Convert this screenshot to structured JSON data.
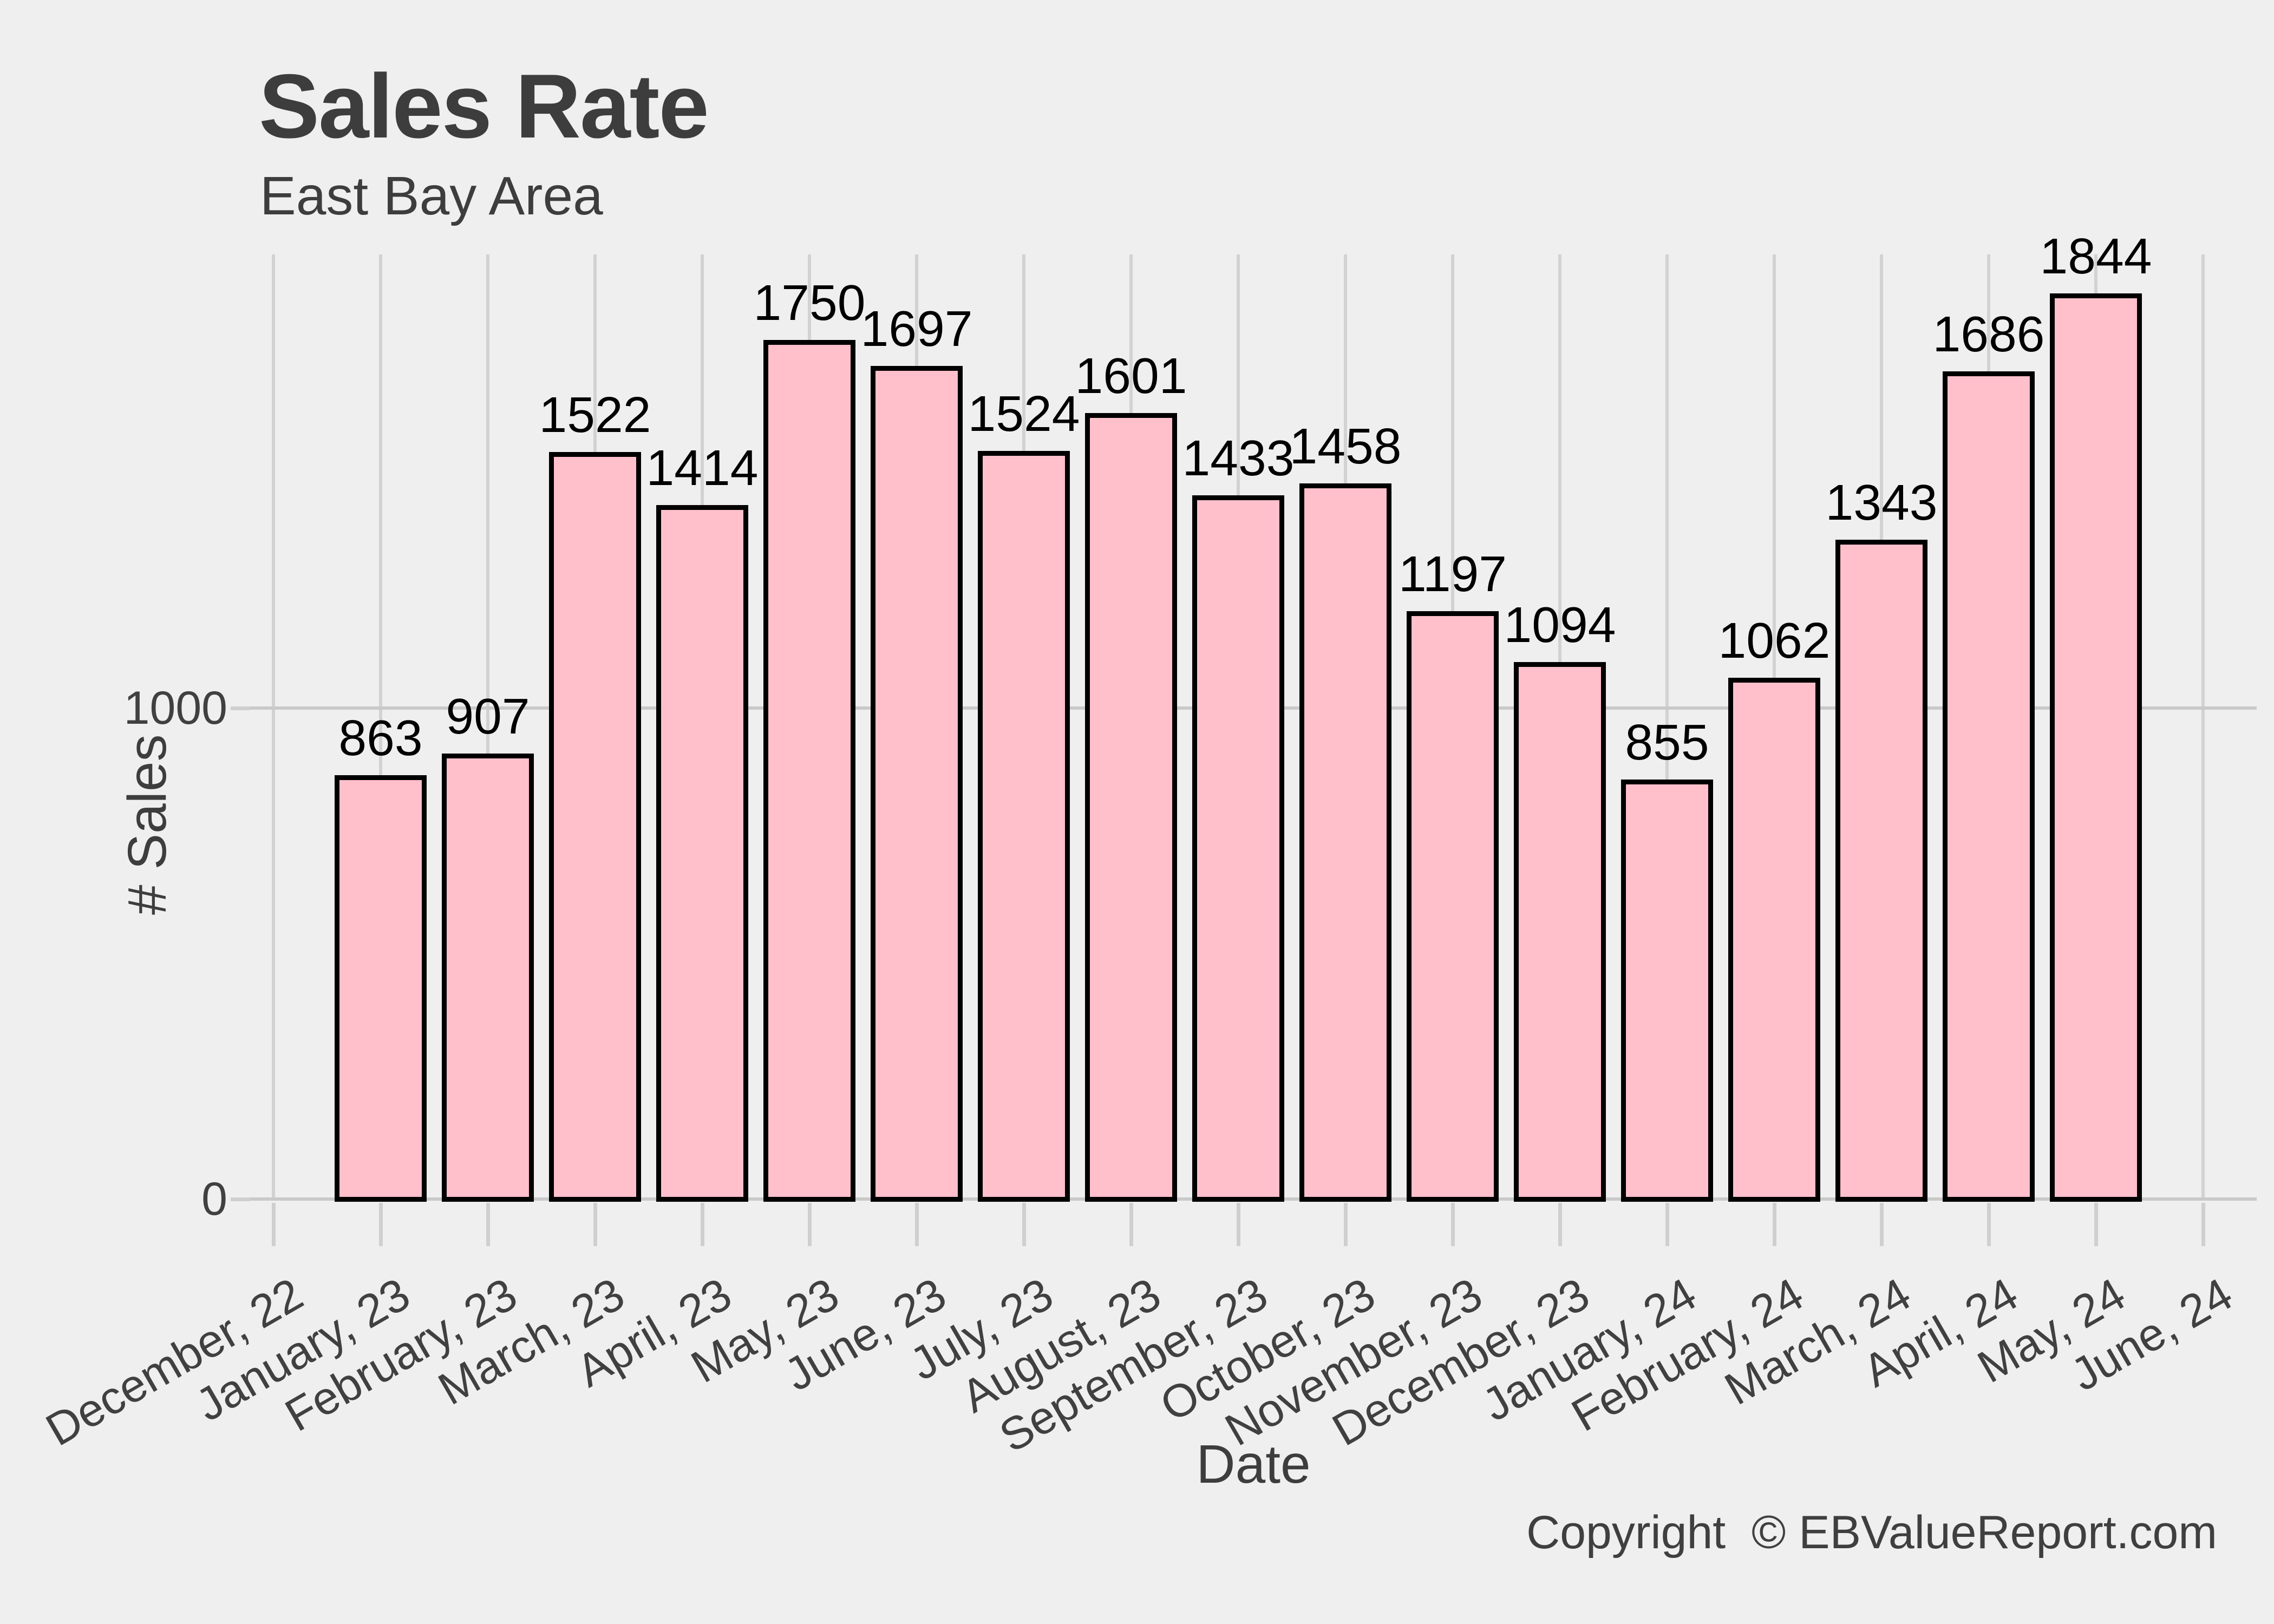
{
  "header": {
    "title": "Sales Rate",
    "subtitle": "East Bay Area"
  },
  "footer": {
    "copyright": "Copyright  © EBValueReport.com"
  },
  "chart_data": {
    "type": "bar",
    "title": "Sales Rate",
    "subtitle": "East Bay Area",
    "xlabel": "Date",
    "ylabel": "# Sales",
    "categories": [
      "December, 22",
      "January, 23",
      "February, 23",
      "March, 23",
      "April, 23",
      "May, 23",
      "June, 23",
      "July, 23",
      "August, 23",
      "September, 23",
      "October, 23",
      "November, 23",
      "December, 23",
      "January, 24",
      "February, 24",
      "March, 24",
      "April, 24",
      "May, 24",
      "June, 24"
    ],
    "values": [
      null,
      863,
      907,
      1522,
      1414,
      1750,
      1697,
      1524,
      1601,
      1433,
      1458,
      1197,
      1094,
      855,
      1062,
      1343,
      1686,
      1844,
      null
    ],
    "bar_value_labels_shown": true,
    "yticks": [
      {
        "value": 0,
        "label": "0"
      },
      {
        "value": 1000,
        "label": "1000"
      }
    ],
    "ylim": [
      0,
      1930
    ],
    "grid": "vertical gridline per category; horizontal lines at y=0 and y=1000",
    "legend": "none",
    "x_tick_label_angle_deg": 30,
    "bar_fill": "#ffc0cb",
    "bar_stroke": "#000000",
    "background": "#efefef",
    "gridline_color": "#d2d2d2",
    "text_color": "#3d3d3d"
  }
}
